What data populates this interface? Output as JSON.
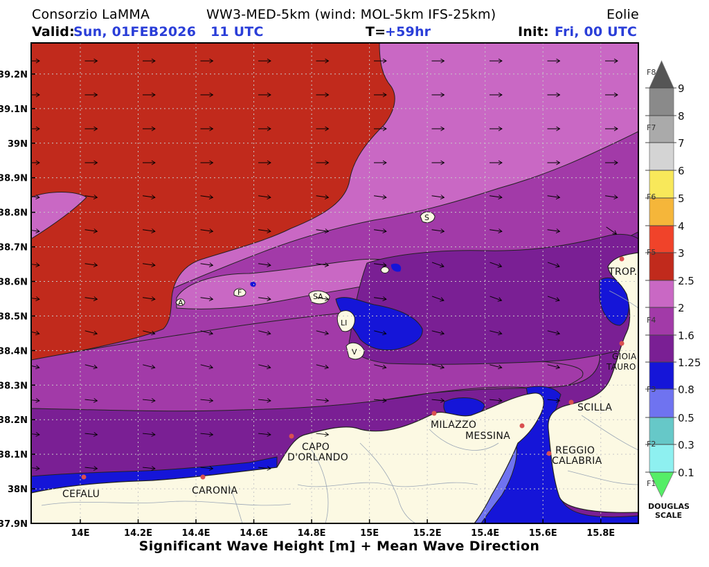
{
  "header": {
    "source": "Consorzio LaMMA",
    "model": "WW3-MED-5km (wind: MOL-5km IFS-25km)",
    "region": "Eolie",
    "valid_label": "Valid:",
    "valid_date": "Sun, 01FEB2026",
    "valid_time": "11 UTC",
    "t_label": "T=",
    "t_value": "+59hr",
    "init_label": "Init:",
    "init_value": "Fri, 00 UTC"
  },
  "footer": {
    "title": "Significant Wave Height [m] + Mean Wave Direction"
  },
  "axes": {
    "lon_ticks": [
      "14E",
      "14.2E",
      "14.4E",
      "14.6E",
      "14.8E",
      "15E",
      "15.2E",
      "15.4E",
      "15.6E",
      "15.8E"
    ],
    "lat_ticks": [
      "39.2N",
      "39.1N",
      "39N",
      "38.9N",
      "38.8N",
      "38.7N",
      "38.6N",
      "38.5N",
      "38.4N",
      "38.3N",
      "38.2N",
      "38.1N",
      "38N",
      "37.9N"
    ],
    "lon_range": [
      13.83,
      15.93
    ],
    "lat_range": [
      37.9,
      39.29
    ]
  },
  "cities": [
    {
      "name": "CEFALU"
    },
    {
      "name": "CARONIA"
    },
    {
      "name": "CAPO"
    },
    {
      "name": "D'ORLANDO"
    },
    {
      "name": "MILAZZO"
    },
    {
      "name": "MESSINA"
    },
    {
      "name": "SCILLA"
    },
    {
      "name": "REGGIO"
    },
    {
      "name": "CALABRIA"
    },
    {
      "name": "TROP."
    },
    {
      "name": "GIOIA"
    },
    {
      "name": "TAURO"
    }
  ],
  "islands": [
    "S",
    "A",
    "F",
    "SA",
    "LI",
    "V"
  ],
  "legend": {
    "levels": [
      "9",
      "8",
      "7",
      "6",
      "5",
      "4",
      "3",
      "2.5",
      "2",
      "1.6",
      "1.25",
      "0.8",
      "0.5",
      "0.3",
      "0.1"
    ],
    "douglas": [
      "F8",
      "F7",
      "F6",
      "F5",
      "F4",
      "F3",
      "F2",
      "F1"
    ],
    "title_line1": "DOUGLAS",
    "title_line2": "SCALE",
    "colors": {
      "above_9": "#555555",
      "8_9": "#8a8a8a",
      "7_8": "#aaaaaa",
      "6_7": "#d4d4d4",
      "5_6": "#f8e85a",
      "4_5": "#f5b63a",
      "3_4": "#f0432a",
      "2.5_3": "#c12a1c",
      "2_2.5": "#c968c4",
      "1.6_2": "#a23aa8",
      "1.25_1.6": "#7a1f94",
      "0.8_1.25": "#1515d8",
      "0.5_0.8": "#6f73f0",
      "0.3_0.5": "#66c8c8",
      "0.1_0.3": "#8ef0f0",
      "below_0.1": "#55ee66"
    }
  },
  "colors": {
    "land": "#fcf9e3",
    "accent_blue": "#2a3ed8"
  }
}
